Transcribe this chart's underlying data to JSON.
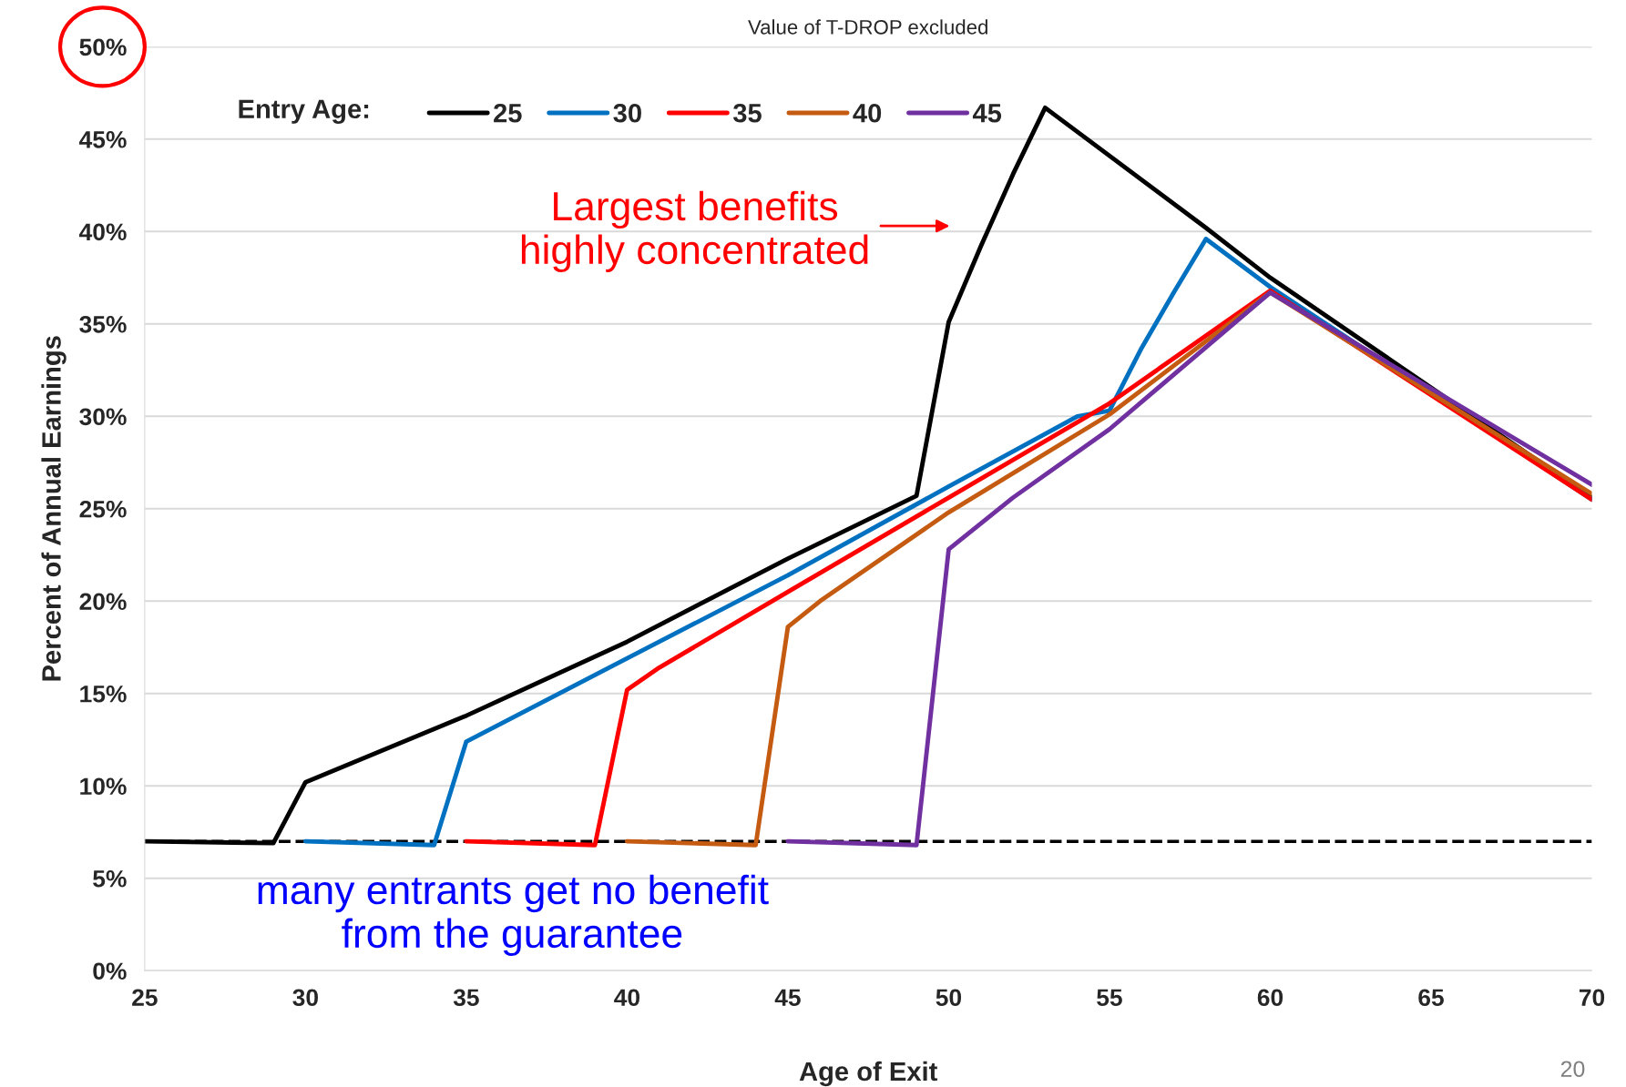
{
  "chart_data": {
    "type": "line",
    "title": "Value of T-DROP excluded",
    "xlabel": "Age of Exit",
    "ylabel": "Percent of Annual Earnings",
    "legend_title": "Entry Age:",
    "series": [
      {
        "name": "25",
        "color": "#000000",
        "x": [
          25,
          29,
          30,
          35,
          40,
          45,
          49,
          50,
          51,
          52,
          53,
          58,
          60,
          70
        ],
        "values": [
          7.0,
          6.9,
          10.2,
          13.8,
          17.8,
          22.3,
          25.7,
          35.1,
          39.2,
          43.1,
          46.7,
          40.2,
          37.5,
          25.6
        ]
      },
      {
        "name": "30",
        "color": "#0070c0",
        "x": [
          30,
          34,
          35,
          40,
          45,
          50,
          54,
          55,
          56,
          57,
          58,
          60,
          70
        ],
        "values": [
          7.0,
          6.8,
          12.4,
          16.9,
          21.4,
          26.2,
          30.0,
          30.3,
          33.7,
          36.7,
          39.6,
          37.0,
          25.5
        ]
      },
      {
        "name": "35",
        "color": "#ff0000",
        "x": [
          35,
          39,
          40,
          41,
          45,
          50,
          55,
          60,
          70
        ],
        "values": [
          7.0,
          6.8,
          15.2,
          16.4,
          20.5,
          25.6,
          30.7,
          36.8,
          25.5
        ]
      },
      {
        "name": "40",
        "color": "#c55a11",
        "x": [
          40,
          44,
          45,
          46,
          50,
          55,
          60,
          70
        ],
        "values": [
          7.0,
          6.8,
          18.6,
          20.0,
          24.8,
          30.1,
          36.7,
          25.8
        ]
      },
      {
        "name": "45",
        "color": "#7030a0",
        "x": [
          45,
          49,
          50,
          52,
          55,
          60,
          70
        ],
        "values": [
          7.0,
          6.8,
          22.8,
          25.6,
          29.3,
          36.7,
          26.3
        ]
      }
    ],
    "ref_lines": [
      {
        "axis": "y",
        "value": 7.0,
        "color": "#000000",
        "line_style": "dashed"
      }
    ],
    "xlim": [
      25,
      70
    ],
    "xticks": [
      25,
      30,
      35,
      40,
      45,
      50,
      55,
      60,
      65,
      70
    ],
    "ylim": [
      0,
      50
    ],
    "yticks": [
      {
        "value": 0,
        "label": "0%"
      },
      {
        "value": 5,
        "label": "5%"
      },
      {
        "value": 10,
        "label": "10%"
      },
      {
        "value": 15,
        "label": "15%"
      },
      {
        "value": 20,
        "label": "20%"
      },
      {
        "value": 25,
        "label": "25%"
      },
      {
        "value": 30,
        "label": "30%"
      },
      {
        "value": 35,
        "label": "35%"
      },
      {
        "value": 40,
        "label": "40%"
      },
      {
        "value": 45,
        "label": "45%"
      },
      {
        "value": 50,
        "label": "50%"
      }
    ],
    "grid": "y",
    "legend": "top left",
    "marker": "none",
    "line_style": "solid",
    "annotations": [
      "Largest benefits\nhighly concentrated",
      "many entrants get no benefit\nfrom the guarantee",
      "20"
    ]
  }
}
